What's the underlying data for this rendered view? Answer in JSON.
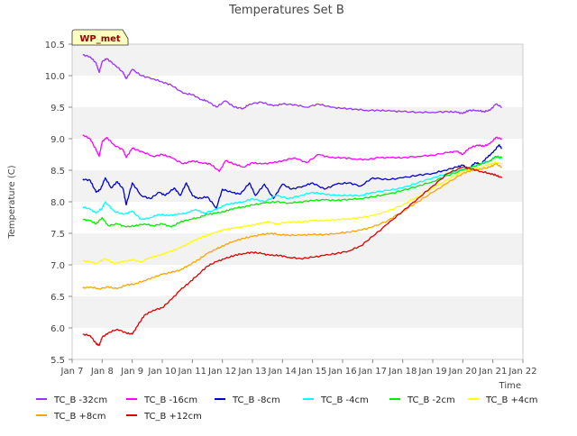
{
  "chart_data": {
    "type": "line",
    "title": "Temperatures Set B",
    "xlabel": "Time",
    "ylabel": "Temperature (C)",
    "ylim": [
      5.5,
      10.5
    ],
    "xlim": [
      7,
      22
    ],
    "yticks": [
      5.5,
      6.0,
      6.5,
      7.0,
      7.5,
      8.0,
      8.5,
      9.0,
      9.5,
      10.0,
      10.5
    ],
    "ytick_labels": [
      "5.5",
      "6.0",
      "6.5",
      "7.0",
      "7.5",
      "8.0",
      "8.5",
      "9.0",
      "9.5",
      "10.0",
      "10.5"
    ],
    "xticks": [
      7,
      8,
      9,
      10,
      11,
      12,
      13,
      14,
      15,
      16,
      17,
      18,
      19,
      20,
      21,
      22
    ],
    "xtick_labels": [
      "Jan 7",
      "Jan 8",
      "Jan 9",
      "Jan 10",
      "Jan 11",
      "Jan 12",
      "Jan 13",
      "Jan 14",
      "Jan 15",
      "Jan 16",
      "Jan 17",
      "Jan 18",
      "Jan 19",
      "Jan 20",
      "Jan 21",
      "Jan 22"
    ],
    "grid": "horizontal bands",
    "legend_position": "bottom",
    "annotation": "WP_met",
    "series": [
      {
        "name": "TC_B -32cm",
        "color": "#9b30ff",
        "x": [
          7.35,
          7.6,
          7.8,
          7.9,
          8.0,
          8.15,
          8.4,
          8.7,
          8.8,
          9.0,
          9.3,
          9.7,
          10.0,
          10.3,
          10.7,
          11.0,
          11.3,
          11.5,
          11.8,
          12.1,
          12.4,
          12.7,
          12.9,
          13.3,
          13.7,
          14.0,
          14.4,
          14.8,
          15.2,
          15.6,
          16.0,
          16.4,
          16.8,
          17.2,
          17.6,
          18.0,
          18.5,
          19.0,
          19.5,
          19.8,
          20.0,
          20.2,
          20.5,
          20.7,
          20.9,
          21.1,
          21.3
        ],
        "y": [
          10.33,
          10.3,
          10.2,
          10.05,
          10.22,
          10.27,
          10.18,
          10.05,
          9.95,
          10.1,
          10.0,
          9.95,
          9.9,
          9.85,
          9.72,
          9.7,
          9.62,
          9.6,
          9.5,
          9.6,
          9.5,
          9.48,
          9.55,
          9.58,
          9.52,
          9.55,
          9.54,
          9.5,
          9.55,
          9.5,
          9.48,
          9.47,
          9.45,
          9.45,
          9.44,
          9.43,
          9.42,
          9.42,
          9.43,
          9.42,
          9.4,
          9.45,
          9.45,
          9.43,
          9.45,
          9.55,
          9.5
        ]
      },
      {
        "name": "TC_B -16cm",
        "color": "#ff00ff",
        "x": [
          7.35,
          7.6,
          7.8,
          7.9,
          8.0,
          8.15,
          8.4,
          8.7,
          8.8,
          9.0,
          9.3,
          9.7,
          10.0,
          10.3,
          10.7,
          11.0,
          11.3,
          11.6,
          11.9,
          12.1,
          12.4,
          12.7,
          13.0,
          13.3,
          13.7,
          14.0,
          14.4,
          14.8,
          15.2,
          15.6,
          16.0,
          16.4,
          16.8,
          17.2,
          17.6,
          18.0,
          18.5,
          19.0,
          19.5,
          19.8,
          20.0,
          20.2,
          20.5,
          20.7,
          20.9,
          21.1,
          21.3
        ],
        "y": [
          9.06,
          9.0,
          8.82,
          8.72,
          8.95,
          9.02,
          8.9,
          8.82,
          8.7,
          8.85,
          8.8,
          8.72,
          8.75,
          8.7,
          8.6,
          8.65,
          8.62,
          8.6,
          8.48,
          8.65,
          8.6,
          8.55,
          8.62,
          8.6,
          8.62,
          8.65,
          8.7,
          8.62,
          8.75,
          8.7,
          8.7,
          8.68,
          8.67,
          8.7,
          8.7,
          8.7,
          8.72,
          8.74,
          8.78,
          8.8,
          8.75,
          8.85,
          8.9,
          8.88,
          8.92,
          9.02,
          9.0
        ]
      },
      {
        "name": "TC_B -8cm",
        "color": "#0000cc",
        "x": [
          7.35,
          7.6,
          7.8,
          7.95,
          8.1,
          8.3,
          8.5,
          8.7,
          8.8,
          9.0,
          9.3,
          9.6,
          9.9,
          10.1,
          10.4,
          10.6,
          10.8,
          11.0,
          11.2,
          11.5,
          11.8,
          12.0,
          12.3,
          12.6,
          12.9,
          13.1,
          13.4,
          13.7,
          14.0,
          14.3,
          14.7,
          15.0,
          15.4,
          15.8,
          16.2,
          16.6,
          17.0,
          17.5,
          18.0,
          18.5,
          19.0,
          19.4,
          19.8,
          20.0,
          20.2,
          20.4,
          20.6,
          20.8,
          21.0,
          21.2,
          21.3
        ],
        "y": [
          8.36,
          8.34,
          8.15,
          8.2,
          8.38,
          8.22,
          8.32,
          8.2,
          7.95,
          8.3,
          8.1,
          8.05,
          8.15,
          8.1,
          8.22,
          8.1,
          8.3,
          8.1,
          8.05,
          8.08,
          7.9,
          8.2,
          8.15,
          8.12,
          8.3,
          8.1,
          8.28,
          8.05,
          8.28,
          8.2,
          8.25,
          8.3,
          8.2,
          8.28,
          8.3,
          8.25,
          8.38,
          8.35,
          8.38,
          8.42,
          8.45,
          8.5,
          8.55,
          8.58,
          8.52,
          8.62,
          8.6,
          8.7,
          8.78,
          8.9,
          8.85
        ]
      },
      {
        "name": "TC_B -4cm",
        "color": "#00ffff",
        "x": [
          7.35,
          7.6,
          7.8,
          8.0,
          8.1,
          8.4,
          8.7,
          9.0,
          9.3,
          9.6,
          9.9,
          10.2,
          10.5,
          10.8,
          11.1,
          11.4,
          11.8,
          12.1,
          12.4,
          12.7,
          13.0,
          13.4,
          13.8,
          14.2,
          14.6,
          15.0,
          15.4,
          15.8,
          16.2,
          16.6,
          17.0,
          17.5,
          18.0,
          18.5,
          19.0,
          19.5,
          20.0,
          20.3,
          20.6,
          20.9,
          21.1,
          21.3
        ],
        "y": [
          7.92,
          7.88,
          7.82,
          7.9,
          8.0,
          7.85,
          7.8,
          7.85,
          7.72,
          7.75,
          7.8,
          7.78,
          7.8,
          7.82,
          7.88,
          7.82,
          7.88,
          7.95,
          7.98,
          8.0,
          8.05,
          8.0,
          8.1,
          8.05,
          8.1,
          8.15,
          8.12,
          8.1,
          8.1,
          8.1,
          8.15,
          8.18,
          8.22,
          8.3,
          8.38,
          8.45,
          8.52,
          8.55,
          8.6,
          8.65,
          8.72,
          8.68
        ]
      },
      {
        "name": "TC_B -2cm",
        "color": "#00ee00",
        "x": [
          7.35,
          7.6,
          7.8,
          8.0,
          8.2,
          8.5,
          8.8,
          9.1,
          9.4,
          9.7,
          10.0,
          10.3,
          10.6,
          10.9,
          11.2,
          11.5,
          11.8,
          12.1,
          12.4,
          12.7,
          13.0,
          13.4,
          13.8,
          14.2,
          14.6,
          15.0,
          15.4,
          15.8,
          16.2,
          16.6,
          17.0,
          17.5,
          18.0,
          18.5,
          19.0,
          19.5,
          20.0,
          20.3,
          20.6,
          20.9,
          21.1,
          21.3
        ],
        "y": [
          7.72,
          7.7,
          7.65,
          7.75,
          7.62,
          7.65,
          7.6,
          7.62,
          7.65,
          7.62,
          7.65,
          7.6,
          7.68,
          7.72,
          7.75,
          7.8,
          7.82,
          7.85,
          7.9,
          7.92,
          7.95,
          7.98,
          8.0,
          7.98,
          8.0,
          8.02,
          8.03,
          8.02,
          8.04,
          8.05,
          8.08,
          8.12,
          8.18,
          8.25,
          8.32,
          8.42,
          8.5,
          8.55,
          8.6,
          8.65,
          8.72,
          8.7
        ]
      },
      {
        "name": "TC_B +4cm",
        "color": "#ffff00",
        "x": [
          7.35,
          7.6,
          7.8,
          8.1,
          8.4,
          8.7,
          9.0,
          9.3,
          9.6,
          9.9,
          10.2,
          10.5,
          10.8,
          11.1,
          11.4,
          11.7,
          12.0,
          12.3,
          12.6,
          12.9,
          13.2,
          13.5,
          13.8,
          14.2,
          14.6,
          15.0,
          15.4,
          15.8,
          16.2,
          16.6,
          17.0,
          17.5,
          18.0,
          18.5,
          19.0,
          19.5,
          20.0,
          20.3,
          20.6,
          20.9,
          21.1,
          21.3
        ],
        "y": [
          7.06,
          7.05,
          7.02,
          7.1,
          7.02,
          7.05,
          7.08,
          7.05,
          7.12,
          7.15,
          7.2,
          7.25,
          7.32,
          7.4,
          7.45,
          7.5,
          7.55,
          7.58,
          7.6,
          7.62,
          7.65,
          7.68,
          7.65,
          7.68,
          7.68,
          7.7,
          7.7,
          7.72,
          7.73,
          7.75,
          7.78,
          7.85,
          7.95,
          8.08,
          8.22,
          8.35,
          8.48,
          8.52,
          8.55,
          8.6,
          8.62,
          8.6
        ]
      },
      {
        "name": "TC_B +8cm",
        "color": "#ffa500",
        "x": [
          7.35,
          7.6,
          7.9,
          8.2,
          8.5,
          8.8,
          9.1,
          9.4,
          9.7,
          10.0,
          10.3,
          10.6,
          10.9,
          11.2,
          11.5,
          11.8,
          12.1,
          12.4,
          12.7,
          13.0,
          13.3,
          13.6,
          13.9,
          14.2,
          14.6,
          15.0,
          15.4,
          15.8,
          16.2,
          16.6,
          17.0,
          17.5,
          18.0,
          18.5,
          19.0,
          19.5,
          20.0,
          20.3,
          20.6,
          20.9,
          21.1,
          21.3
        ],
        "y": [
          6.63,
          6.65,
          6.62,
          6.65,
          6.62,
          6.68,
          6.7,
          6.75,
          6.8,
          6.85,
          6.88,
          6.92,
          7.0,
          7.08,
          7.18,
          7.25,
          7.32,
          7.38,
          7.42,
          7.45,
          7.48,
          7.5,
          7.48,
          7.47,
          7.47,
          7.48,
          7.48,
          7.5,
          7.52,
          7.55,
          7.6,
          7.7,
          7.85,
          8.0,
          8.15,
          8.3,
          8.45,
          8.5,
          8.52,
          8.55,
          8.6,
          8.55
        ]
      },
      {
        "name": "TC_B +12cm",
        "color": "#dd0000",
        "x": [
          7.35,
          7.6,
          7.8,
          7.9,
          8.0,
          8.2,
          8.5,
          8.8,
          9.0,
          9.2,
          9.4,
          9.7,
          10.0,
          10.3,
          10.6,
          10.9,
          11.2,
          11.5,
          11.8,
          12.1,
          12.4,
          12.7,
          13.0,
          13.3,
          13.6,
          13.9,
          14.2,
          14.6,
          15.0,
          15.4,
          15.8,
          16.2,
          16.6,
          17.0,
          17.5,
          18.0,
          18.5,
          19.0,
          19.5,
          20.0,
          20.3,
          20.6,
          20.9,
          21.1,
          21.3
        ],
        "y": [
          5.9,
          5.88,
          5.75,
          5.72,
          5.85,
          5.92,
          5.98,
          5.92,
          5.9,
          6.05,
          6.2,
          6.28,
          6.32,
          6.45,
          6.6,
          6.72,
          6.85,
          6.98,
          7.05,
          7.1,
          7.15,
          7.18,
          7.2,
          7.18,
          7.15,
          7.15,
          7.12,
          7.1,
          7.12,
          7.15,
          7.18,
          7.22,
          7.3,
          7.45,
          7.65,
          7.85,
          8.05,
          8.25,
          8.45,
          8.55,
          8.52,
          8.48,
          8.45,
          8.42,
          8.38
        ]
      }
    ]
  }
}
